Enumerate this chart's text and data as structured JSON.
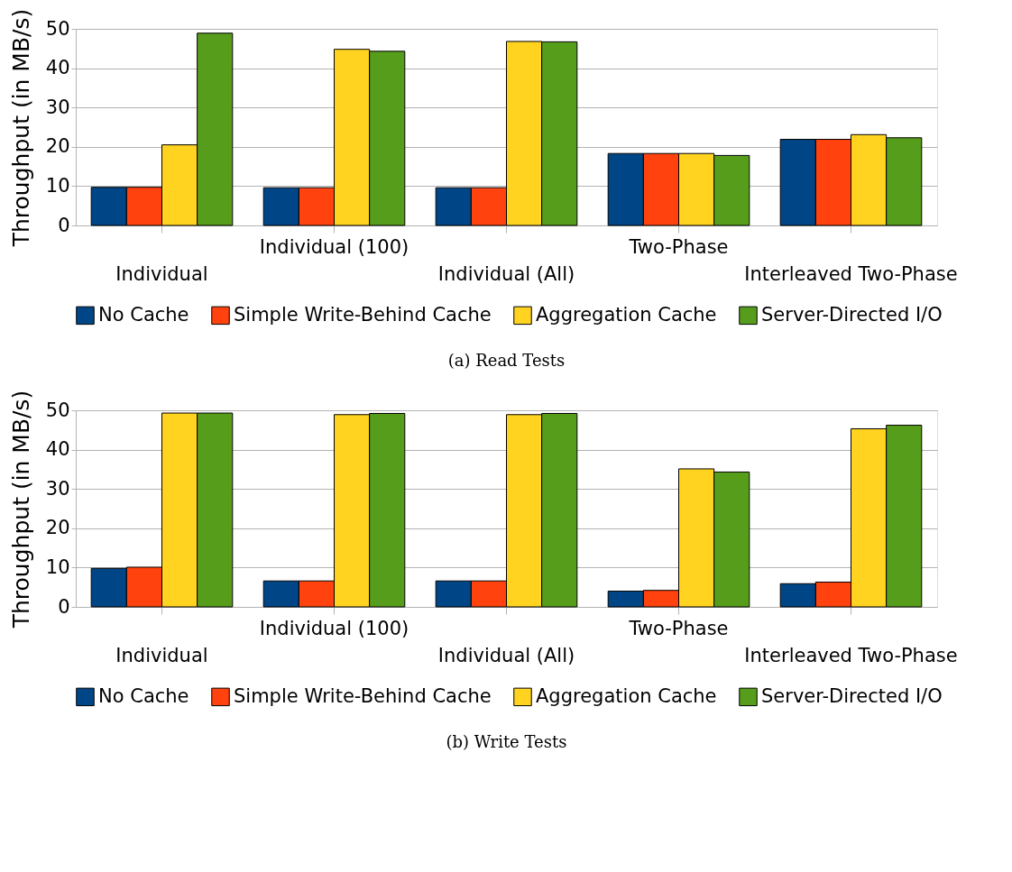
{
  "chart_data": [
    {
      "type": "bar",
      "title": "(a) Read Tests",
      "ylabel": "Throughput (in MB/s)",
      "categories": [
        "Individual",
        "Individual (100)",
        "Individual (All)",
        "Two-Phase",
        "Interleaved Two-Phase"
      ],
      "series": [
        {
          "name": "No Cache",
          "color": "#004586",
          "values": [
            9.7,
            9.6,
            9.6,
            18.3,
            21.9
          ]
        },
        {
          "name": "Simple Write-Behind Cache",
          "color": "#ff420e",
          "values": [
            9.7,
            9.6,
            9.6,
            18.3,
            21.9
          ]
        },
        {
          "name": "Aggregation Cache",
          "color": "#ffd320",
          "values": [
            20.5,
            44.8,
            46.8,
            18.3,
            23.1
          ]
        },
        {
          "name": "Server-Directed I/O",
          "color": "#579d1c",
          "values": [
            48.9,
            44.3,
            46.7,
            17.8,
            22.3
          ]
        }
      ],
      "ylim": [
        0,
        50
      ],
      "yticks": [
        0,
        10,
        20,
        30,
        40,
        50
      ],
      "grid": "y",
      "legend": "bottom"
    },
    {
      "type": "bar",
      "title": "(b) Write Tests",
      "ylabel": "Throughput (in MB/s)",
      "categories": [
        "Individual",
        "Individual (100)",
        "Individual (All)",
        "Two-Phase",
        "Interleaved Two-Phase"
      ],
      "series": [
        {
          "name": "No Cache",
          "color": "#004586",
          "values": [
            9.8,
            6.6,
            6.6,
            4.0,
            5.9
          ]
        },
        {
          "name": "Simple Write-Behind Cache",
          "color": "#ff420e",
          "values": [
            10.1,
            6.6,
            6.6,
            4.2,
            6.3
          ]
        },
        {
          "name": "Aggregation Cache",
          "color": "#ffd320",
          "values": [
            49.3,
            48.9,
            48.9,
            35.1,
            45.3
          ]
        },
        {
          "name": "Server-Directed I/O",
          "color": "#579d1c",
          "values": [
            49.3,
            49.2,
            49.2,
            34.3,
            46.2
          ]
        }
      ],
      "ylim": [
        0,
        50
      ],
      "yticks": [
        0,
        10,
        20,
        30,
        40,
        50
      ],
      "grid": "y",
      "legend": "bottom"
    }
  ]
}
